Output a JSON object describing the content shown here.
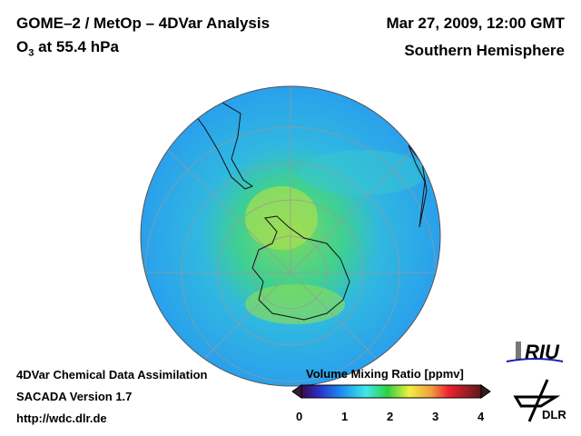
{
  "header": {
    "title_line1": "GOME–2 / MetOp – 4DVar Analysis",
    "title_line2_prefix": "O",
    "title_line2_sub": "3",
    "title_line2_suffix": " at 55.4 hPa",
    "date": "Mar 27, 2009, 12:00 GMT",
    "region": "Southern Hemisphere"
  },
  "footer": {
    "line1": "4DVar Chemical Data Assimilation",
    "line2": "SACADA Version 1.7",
    "line3": "http://wdc.dlr.de"
  },
  "colorbar": {
    "title": "Volume Mixing Ratio [ppmv]",
    "ticks": [
      "0",
      "1",
      "2",
      "3",
      "4"
    ],
    "range": [
      0,
      4
    ],
    "colors": [
      "#3a0a4a",
      "#2a30c8",
      "#1a8cf0",
      "#40e8e8",
      "#30d040",
      "#f0f040",
      "#f0a040",
      "#f02030",
      "#5a1a1a"
    ]
  },
  "logos": {
    "riu": "RIU",
    "dlr": "DLR"
  }
}
